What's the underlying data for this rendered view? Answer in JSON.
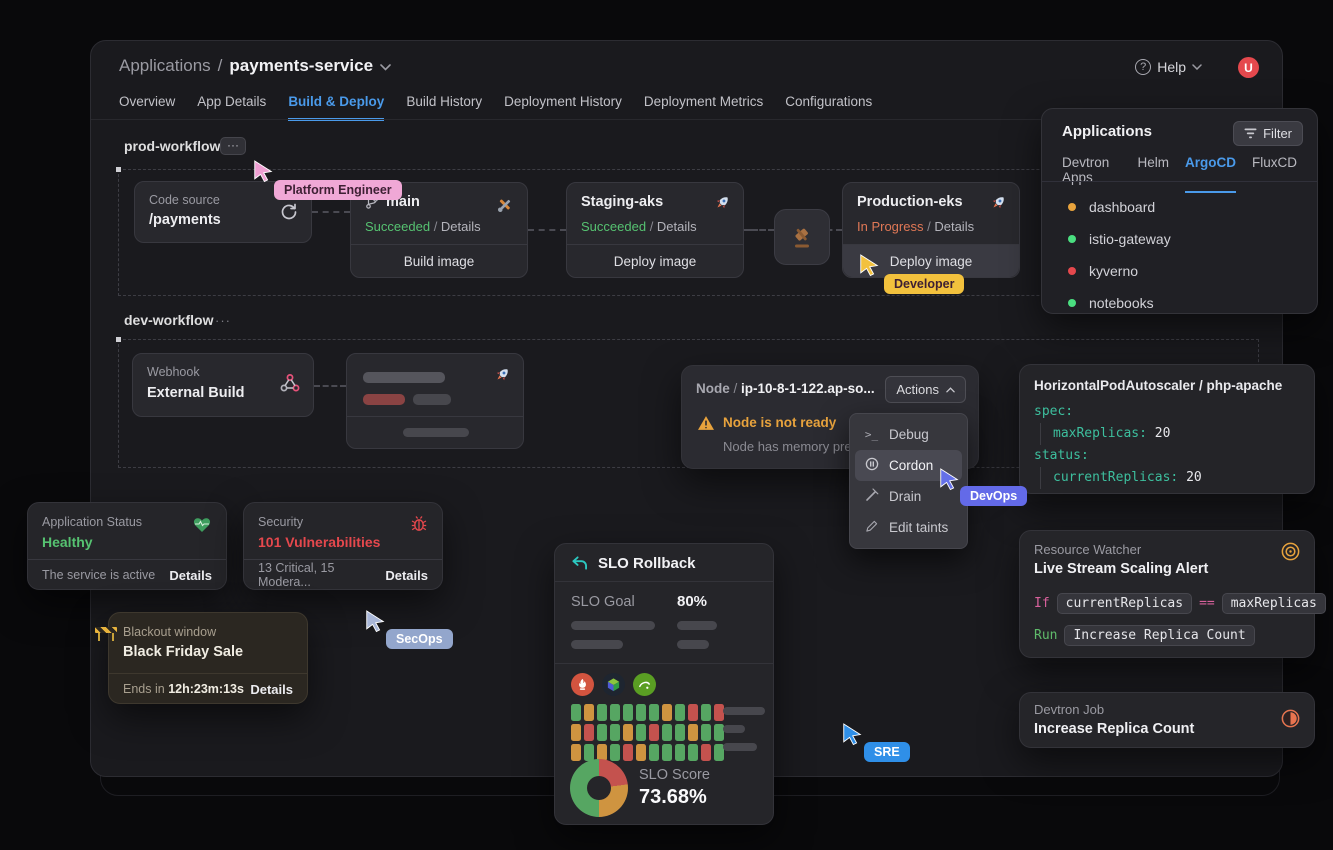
{
  "ui": {
    "slash": "/",
    "ellipsis": "···"
  },
  "header": {
    "breadcrumb_root": "Applications",
    "breadcrumb_sep": "/",
    "app_name": "payments-service",
    "help_label": "Help",
    "avatar_initial": "U",
    "tabs": [
      {
        "label": "Overview"
      },
      {
        "label": "App Details"
      },
      {
        "label": "Build & Deploy"
      },
      {
        "label": "Build History"
      },
      {
        "label": "Deployment History"
      },
      {
        "label": "Deployment Metrics"
      },
      {
        "label": "Configurations"
      }
    ],
    "active_tab": "Build & Deploy",
    "accent_color": "#4a9aea"
  },
  "prod": {
    "title": "prod-workflow",
    "code_source": {
      "label": "Code source",
      "value": "/payments"
    },
    "build": {
      "branch": "main",
      "status": "Succeeded",
      "details": "Details",
      "action": "Build image"
    },
    "staging": {
      "name": "Staging-aks",
      "status": "Succeeded",
      "details": "Details",
      "action": "Deploy image"
    },
    "production": {
      "name": "Production-eks",
      "status": "In Progress",
      "details": "Details",
      "action": "Deploy image"
    }
  },
  "dev": {
    "title": "dev-workflow",
    "webhook": {
      "label": "Webhook",
      "value": "External Build"
    }
  },
  "apps_panel": {
    "title": "Applications",
    "filter_label": "Filter",
    "tabs": [
      {
        "label": "Devtron Apps"
      },
      {
        "label": "Helm"
      },
      {
        "label": "ArgoCD"
      },
      {
        "label": "FluxCD"
      }
    ],
    "active_tab": "ArgoCD",
    "items": [
      {
        "name": "dashboard",
        "color": "#e8a33d"
      },
      {
        "name": "istio-gateway",
        "color": "#4ade80"
      },
      {
        "name": "kyverno",
        "color": "#e5484d"
      },
      {
        "name": "notebooks",
        "color": "#4ade80"
      }
    ]
  },
  "node_panel": {
    "kind": "Node",
    "sep": "/",
    "name": "ip-10-8-1-122.ap-so...",
    "actions_label": "Actions",
    "warning_title": "Node is not ready",
    "warning_desc": "Node has memory pre...",
    "menu": [
      {
        "label": "Debug"
      },
      {
        "label": "Cordon"
      },
      {
        "label": "Drain"
      },
      {
        "label": "Edit taints"
      }
    ],
    "active_item": "Cordon"
  },
  "hpa": {
    "title": "HorizontalPodAutoscaler / php-apache",
    "lines": [
      {
        "key": "spec:",
        "value": ""
      },
      {
        "key": "maxReplicas:",
        "value": "20"
      },
      {
        "key": "status:",
        "value": ""
      },
      {
        "key": "currentReplicas:",
        "value": "20"
      }
    ]
  },
  "status_card": {
    "label": "Application Status",
    "value": "Healthy",
    "footer": "The service is active",
    "details": "Details",
    "value_color": "#56c271"
  },
  "security_card": {
    "label": "Security",
    "value": "101 Vulnerabilities",
    "footer": "13 Critical, 15 Modera...",
    "details": "Details",
    "value_color": "#e5484d"
  },
  "blackout_card": {
    "label": "Blackout window",
    "value": "Black Friday Sale",
    "ends_label": "Ends in",
    "countdown": "12h:23m:13s",
    "details": "Details"
  },
  "slo": {
    "title": "SLO Rollback",
    "goal_label": "SLO Goal",
    "goal_value": "80%",
    "score_label": "SLO Score",
    "score_value": "73.68%",
    "heatmap_colors": {
      "g": "#56a662",
      "o": "#cf9440",
      "r": "#c4524e"
    },
    "heatmap": [
      [
        "g",
        "o",
        "g",
        "g",
        "g",
        "g",
        "g",
        "o",
        "g",
        "r",
        "g",
        "r"
      ],
      [
        "o",
        "r",
        "g",
        "g",
        "o",
        "g",
        "r",
        "g",
        "g",
        "o",
        "g",
        "g"
      ],
      [
        "o",
        "g",
        "o",
        "g",
        "r",
        "o",
        "g",
        "g",
        "g",
        "g",
        "r",
        "g"
      ]
    ],
    "donut": [
      {
        "color": "#c4524e",
        "pct": 23
      },
      {
        "color": "#cf9440",
        "pct": 27
      },
      {
        "color": "#56a662",
        "pct": 50
      }
    ]
  },
  "watcher": {
    "label": "Resource Watcher",
    "title": "Live Stream Scaling Alert",
    "if_kw": "If",
    "cond_left": "currentReplicas",
    "op": "==",
    "cond_right": "maxReplicas",
    "run_kw": "Run",
    "run_value": "Increase Replica Count"
  },
  "job": {
    "label": "Devtron Job",
    "title": "Increase Replica Count"
  },
  "cursors": [
    {
      "label": "Platform Engineer",
      "color": "#f0a8d6",
      "text": "dark"
    },
    {
      "label": "Developer",
      "color": "#f2c13d",
      "text": "dark"
    },
    {
      "label": "DevOps",
      "color": "#636ae8",
      "text": "light"
    },
    {
      "label": "SecOps",
      "color": "#93a6cc",
      "text": "light"
    },
    {
      "label": "SRE",
      "color": "#2f8fe8",
      "text": "light"
    }
  ]
}
